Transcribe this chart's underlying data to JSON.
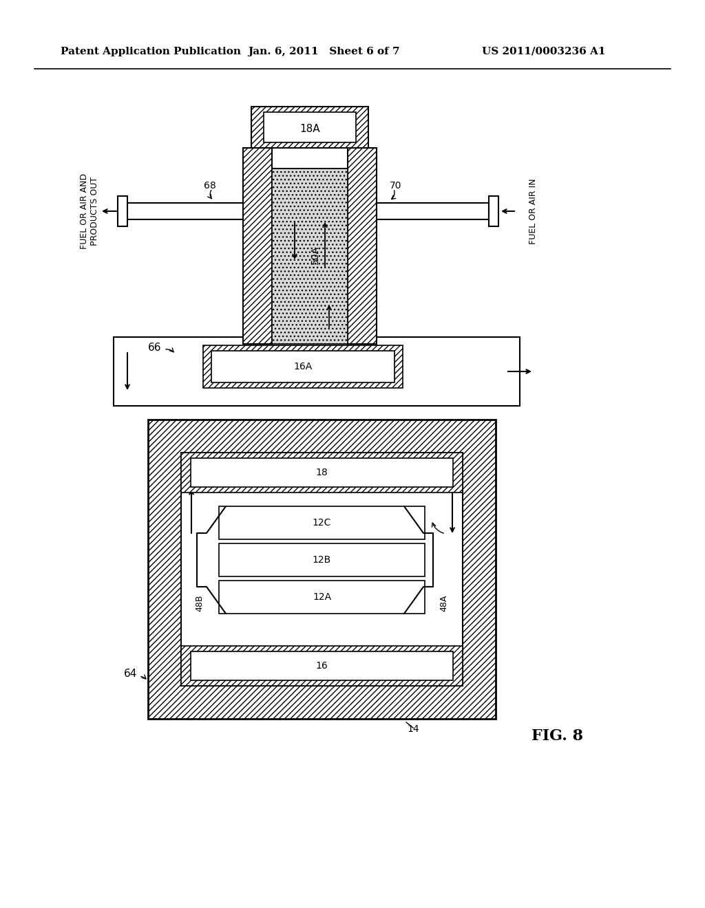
{
  "bg_color": "#ffffff",
  "line_color": "#000000",
  "header_left": "Patent Application Publication",
  "header_mid": "Jan. 6, 2011   Sheet 6 of 7",
  "header_right": "US 2011/0003236 A1",
  "fig_label": "FIG. 8"
}
